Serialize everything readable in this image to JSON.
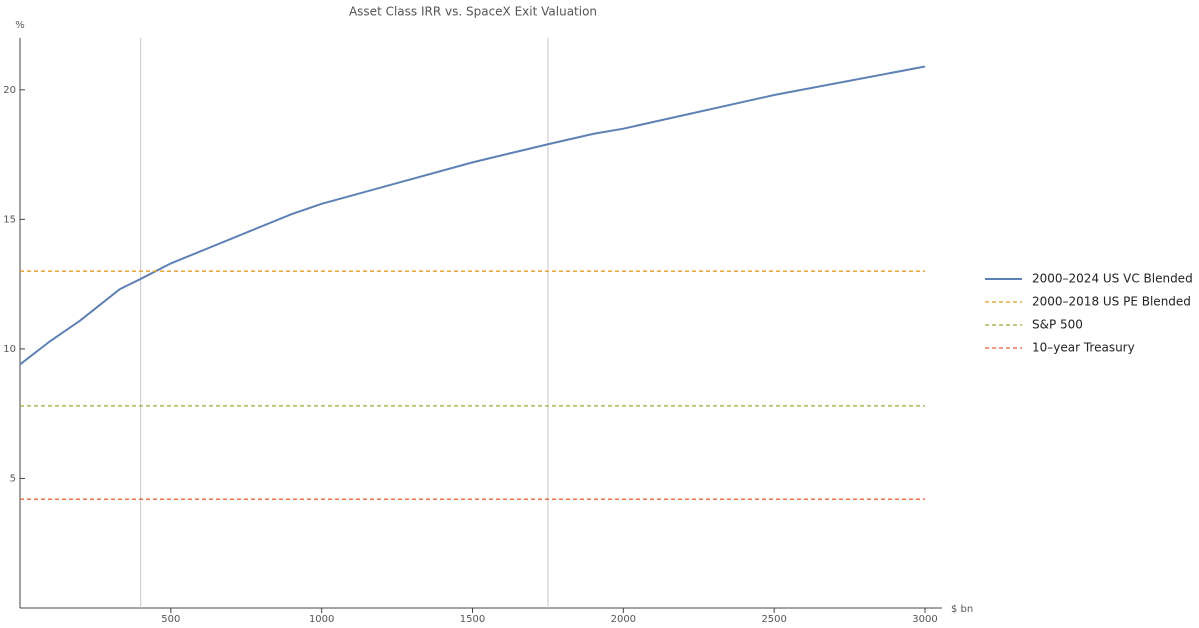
{
  "chart_data": {
    "type": "line",
    "title": "Asset Class IRR vs. SpaceX Exit Valuation",
    "x_label": "$ bn",
    "y_label": "%",
    "xlim": [
      0,
      3000
    ],
    "ylim": [
      0,
      22
    ],
    "xticks": [
      500,
      1000,
      1500,
      2000,
      2500,
      3000
    ],
    "yticks": [
      5,
      10,
      15,
      20
    ],
    "x_gridlines": [
      400,
      1750
    ],
    "series": [
      {
        "name": "2000–2024 US VC Blended",
        "color": "#5e81b5",
        "x": [
          0,
          100,
          200,
          330,
          400,
          500,
          900,
          1000,
          1500,
          1750,
          1900,
          2000,
          2500,
          3000
        ],
        "values": [
          9.4,
          10.3,
          11.1,
          12.3,
          12.7,
          13.3,
          15.2,
          15.6,
          17.2,
          17.9,
          18.3,
          18.5,
          19.8,
          20.9
        ]
      },
      {
        "name": "2000–2018 US PE Blended",
        "color": "#e19c24",
        "value": 13.0,
        "dashed": true
      },
      {
        "name": "S&P 500",
        "color": "#8fb032",
        "value": 7.8,
        "dashed": true
      },
      {
        "name": "10–year Treasury",
        "color": "#eb6235",
        "value": 4.2,
        "dashed": true
      }
    ]
  }
}
